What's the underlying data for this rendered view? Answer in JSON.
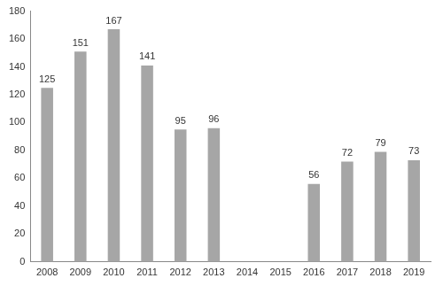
{
  "chart_data": {
    "type": "bar",
    "categories": [
      "2008",
      "2009",
      "2010",
      "2011",
      "2012",
      "2013",
      "2014",
      "2015",
      "2016",
      "2017",
      "2018",
      "2019"
    ],
    "values": [
      125,
      151,
      167,
      141,
      95,
      96,
      null,
      null,
      56,
      72,
      79,
      73
    ],
    "color": "#a6a6a6",
    "ylim": [
      0,
      180
    ],
    "yticks": [
      0,
      20,
      40,
      60,
      80,
      100,
      120,
      140,
      160,
      180
    ],
    "grid": false,
    "data_labels": true
  }
}
